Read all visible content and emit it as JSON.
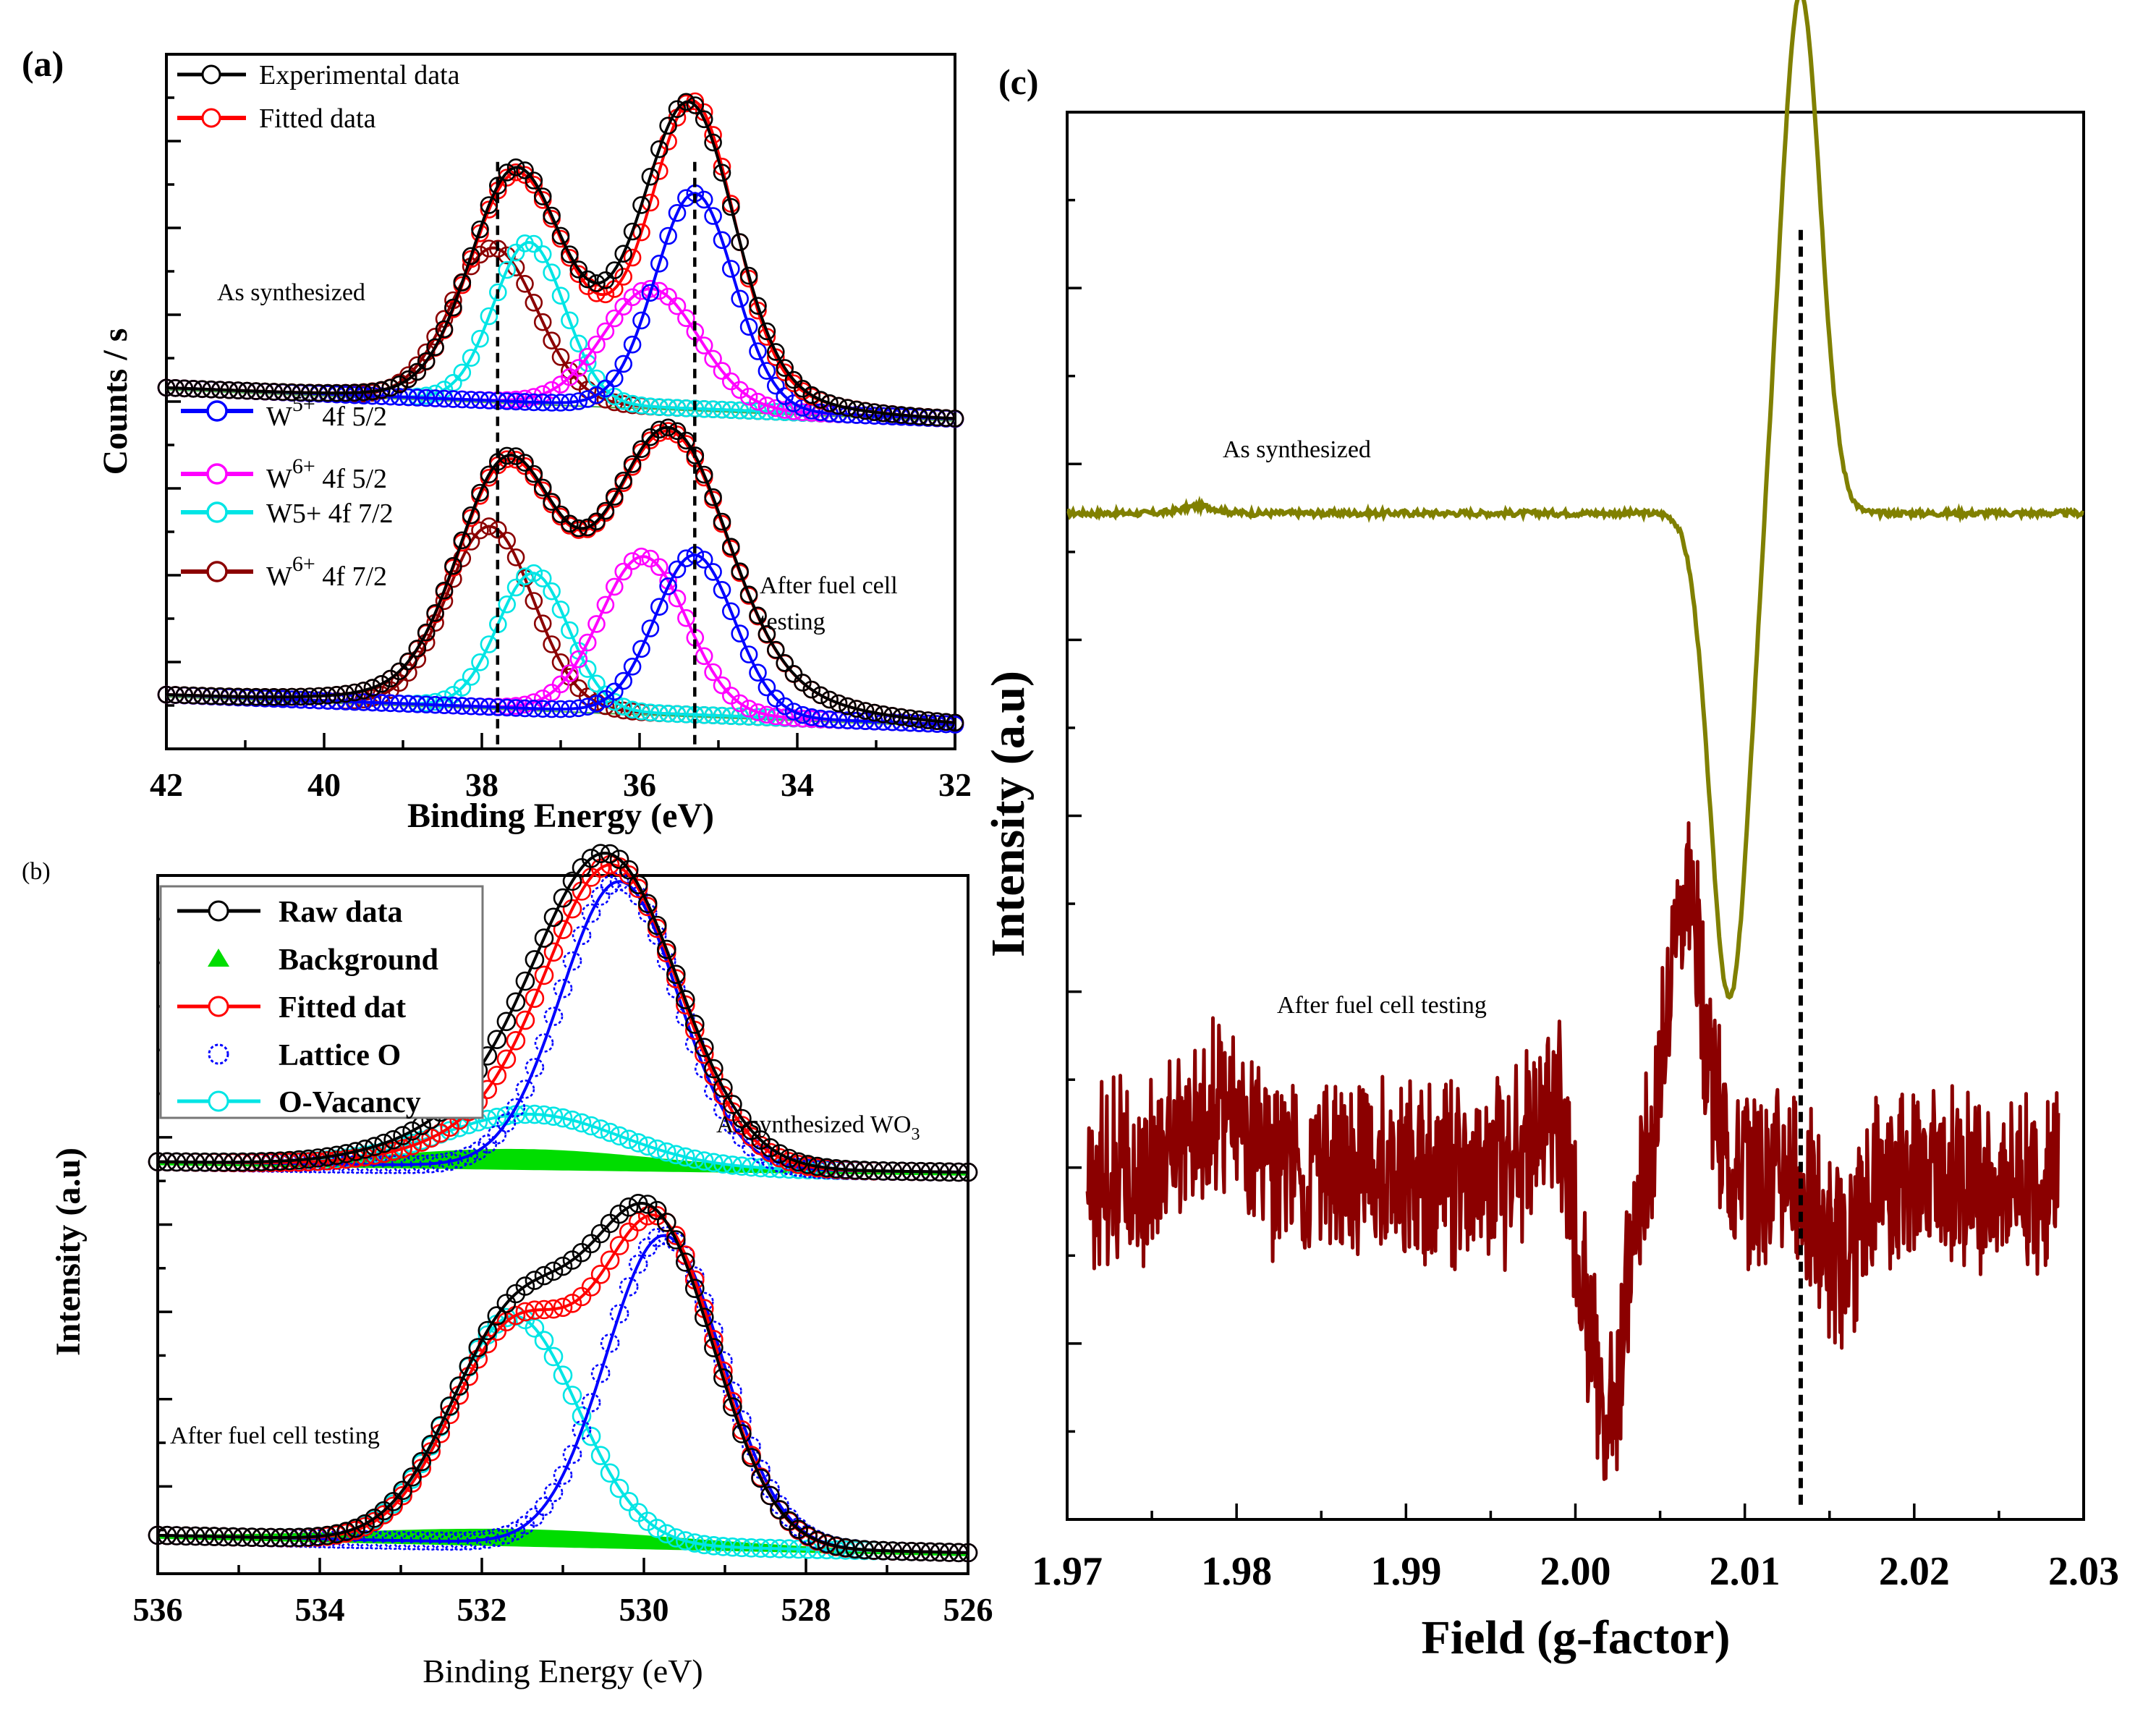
{
  "figure": {
    "panel_a_label": "(a)",
    "panel_b_label": "(b)",
    "panel_c_label": "(c)"
  },
  "chart_data": [
    {
      "id": "a",
      "type": "line",
      "title": "",
      "xlabel": "Binding Energy (eV)",
      "ylabel": "Counts / s",
      "xlim": [
        42,
        32
      ],
      "xticks": [
        "42",
        "40",
        "38",
        "36",
        "34",
        "32"
      ],
      "xtick_values": [
        42,
        40,
        38,
        36,
        34,
        32
      ],
      "ylim": [
        0,
        10
      ],
      "grid": false,
      "legend_position": "top-left",
      "reference_lines_x": [
        37.8,
        35.3
      ],
      "annotations": [
        "As synthesized",
        "After fuel  cell",
        "testing"
      ],
      "legend": {
        "experimental": "Experimental data",
        "fitted": "Fitted data",
        "w5_52": {
          "sym": "W",
          "sup": "5+",
          "rest": " 4f 5/2"
        },
        "w6_52": {
          "sym": "W",
          "sup": "6+",
          "rest": " 4f 5/2"
        },
        "w5_72": "W5+ 4f 7/2",
        "w6_72": {
          "sym": "W",
          "sup": "6+",
          "rest": " 4f 7/2"
        }
      },
      "groups": [
        {
          "name": "As synthesized",
          "baseline": [
            5.2,
            4.75
          ],
          "series": [
            {
              "name": "Experimental data",
              "color": "#000000",
              "peaks": [
                [
                  37.6,
                  2.8,
                  0.55
                ],
                [
                  35.35,
                  3.6,
                  0.55
                ],
                [
                  36.2,
                  1.0,
                  1.3
                ]
              ]
            },
            {
              "name": "Fitted data",
              "color": "#ff0000",
              "peaks": [
                [
                  37.6,
                  2.7,
                  0.55
                ],
                [
                  35.3,
                  3.6,
                  0.5
                ],
                [
                  36.2,
                  1.05,
                  1.3
                ]
              ]
            },
            {
              "name": "W5+ 4f 5/2",
              "color": "#0000ff",
              "peaks": [
                [
                  35.3,
                  3.1,
                  0.5
                ]
              ]
            },
            {
              "name": "W6+ 4f 5/2",
              "color": "#ff00ff",
              "peaks": [
                [
                  35.85,
                  1.7,
                  0.6
                ]
              ]
            },
            {
              "name": "W5+ 4f 7/2",
              "color": "#00e5e5",
              "peaks": [
                [
                  37.4,
                  2.3,
                  0.45
                ]
              ]
            },
            {
              "name": "W6+ 4f 7/2",
              "color": "#8b0000",
              "peaks": [
                [
                  37.85,
                  2.2,
                  0.55
                ]
              ]
            }
          ]
        },
        {
          "name": "After fuel cell testing",
          "baseline": [
            0.78,
            0.35
          ],
          "series": [
            {
              "name": "Experimental data",
              "color": "#000000",
              "peaks": [
                [
                  37.7,
                  2.9,
                  0.6
                ],
                [
                  35.6,
                  3.2,
                  0.7
                ],
                [
                  36.3,
                  1.0,
                  1.6
                ]
              ]
            },
            {
              "name": "Fitted data",
              "color": "#ff0000",
              "peaks": [
                [
                  37.7,
                  2.85,
                  0.6
                ],
                [
                  35.6,
                  3.15,
                  0.7
                ],
                [
                  36.3,
                  1.0,
                  1.6
                ]
              ]
            },
            {
              "name": "W5+ 4f 5/2",
              "color": "#0000ff",
              "peaks": [
                [
                  35.3,
                  2.3,
                  0.5
                ]
              ]
            },
            {
              "name": "W6+ 4f 5/2",
              "color": "#ff00ff",
              "peaks": [
                [
                  35.95,
                  2.25,
                  0.55
                ]
              ]
            },
            {
              "name": "W5+ 4f 7/2",
              "color": "#00e5e5",
              "peaks": [
                [
                  37.35,
                  1.95,
                  0.45
                ]
              ]
            },
            {
              "name": "W6+ 4f 7/2",
              "color": "#8b0000",
              "peaks": [
                [
                  37.9,
                  2.6,
                  0.55
                ]
              ]
            }
          ]
        }
      ]
    },
    {
      "id": "b",
      "type": "line",
      "title": "",
      "xlabel": "Binding Energy (eV)",
      "ylabel": "Intensity (a.u)",
      "xlim": [
        536,
        526
      ],
      "xticks": [
        "536",
        "534",
        "532",
        "530",
        "528",
        "526"
      ],
      "xtick_values": [
        536,
        534,
        532,
        530,
        528,
        526
      ],
      "ylim": [
        0,
        10
      ],
      "grid": false,
      "legend_position": "top-left",
      "annotations": [
        "As synthesized WO",
        "3",
        "After fuel cell testing"
      ],
      "legend": {
        "raw": "Raw data",
        "background": "Background",
        "fitted": "Fitted dat",
        "lattice": "Lattice O",
        "vacancy": "O-Vacancy"
      },
      "groups": [
        {
          "name": "As synthesized WO3",
          "baseline": [
            5.9,
            5.75
          ],
          "background_peak": [
            531.5,
            0.25,
            1.6
          ],
          "series": [
            {
              "name": "Raw data",
              "color": "#000000",
              "peaks": [
                [
                  530.4,
                  3.85,
                  0.85
                ],
                [
                  531.4,
                  0.9,
                  1.2
                ]
              ]
            },
            {
              "name": "Fitted dat",
              "color": "#ff0000",
              "peaks": [
                [
                  530.35,
                  3.95,
                  0.8
                ],
                [
                  531.4,
                  0.6,
                  1.1
                ]
              ]
            },
            {
              "name": "Lattice O",
              "color": "#0000ff",
              "peaks": [
                [
                  530.3,
                  4.1,
                  0.72
                ]
              ]
            },
            {
              "name": "O-Vacancy",
              "color": "#00e5e5",
              "peaks": [
                [
                  531.4,
                  0.75,
                  1.1
                ]
              ]
            }
          ]
        },
        {
          "name": "After fuel cell testing",
          "baseline": [
            0.55,
            0.3
          ],
          "background_peak": [
            531.5,
            0.2,
            2.0
          ],
          "series": [
            {
              "name": "Raw data",
              "color": "#000000",
              "peaks": [
                [
                  529.85,
                  4.3,
                  0.75
                ],
                [
                  531.6,
                  2.85,
                  0.8
                ],
                [
                  531.0,
                  0.5,
                  1.0
                ]
              ]
            },
            {
              "name": "Fitted dat",
              "color": "#ff0000",
              "peaks": [
                [
                  529.8,
                  4.5,
                  0.72
                ],
                [
                  531.6,
                  3.05,
                  0.78
                ]
              ]
            },
            {
              "name": "Lattice O",
              "color": "#0000ff",
              "peaks": [
                [
                  529.75,
                  4.45,
                  0.72
                ]
              ]
            },
            {
              "name": "O-Vacancy",
              "color": "#00e5e5",
              "peaks": [
                [
                  531.6,
                  3.25,
                  0.78
                ]
              ]
            }
          ]
        }
      ]
    },
    {
      "id": "c",
      "type": "line",
      "title": "",
      "xlabel": "Field (g-factor)",
      "ylabel": "Intensity (a.u)",
      "xlim": [
        1.97,
        2.03
      ],
      "xticks": [
        "1.97",
        "1.98",
        "1.99",
        "2.00",
        "2.01",
        "2.02",
        "2.03"
      ],
      "xtick_values": [
        1.97,
        1.98,
        1.99,
        2.0,
        2.01,
        2.02,
        2.03
      ],
      "ylim": [
        0,
        10
      ],
      "grid": false,
      "reference_lines_x": [
        2.0133
      ],
      "annotations": [
        "As synthesized",
        "After fuel cell testing"
      ],
      "series": [
        {
          "name": "As synthesized",
          "color": "#808000",
          "x_range": [
            1.97,
            2.03
          ],
          "baseline": 7.15,
          "derivative_center": 2.0112,
          "half_separation": 0.0021,
          "pos_peak": 3.7,
          "neg_peak": -3.45
        },
        {
          "name": "After fuel cell testing",
          "color": "#8b0000",
          "x_range": [
            1.9712,
            2.0285
          ],
          "baseline": 2.45,
          "noise": 0.55,
          "features": [
            [
              2.0065,
              2.0,
              0.0011
            ],
            [
              2.0018,
              -1.7,
              0.0011
            ],
            [
              2.0155,
              -0.6,
              0.0012
            ],
            [
              1.9787,
              0.5,
              0.0015
            ],
            [
              1.9985,
              0.55,
              0.0009
            ]
          ]
        }
      ]
    }
  ]
}
